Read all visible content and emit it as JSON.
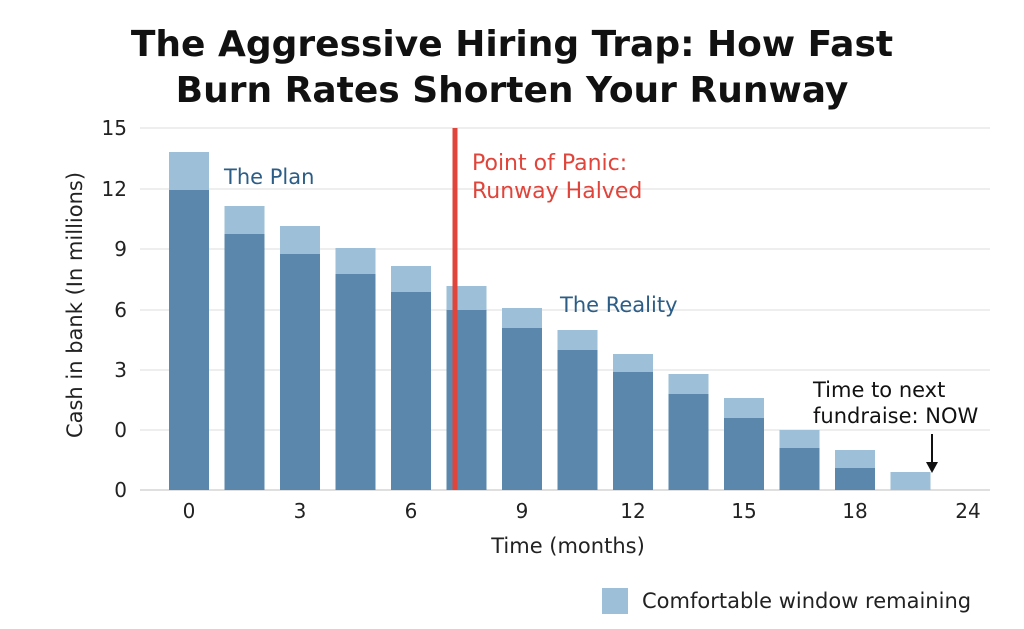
{
  "title_lines": [
    "The Aggressive Hiring Trap: How Fast",
    "Burn Rates Shorten Your Runway"
  ],
  "legend": {
    "label": "Comfortable window remaining",
    "color": "#9dbfd8"
  },
  "colors": {
    "reality": "#5b87ad",
    "window": "#9dbfd8",
    "panic": "#e0443a",
    "annotation_blue": "#2b5d86"
  },
  "chart_data": {
    "type": "bar",
    "title": "The Aggressive Hiring Trap: How Fast Burn Rates Shorten Your Runway",
    "xlabel": "Time (months)",
    "ylabel": "Cash in bank (In millions)",
    "x_ticks": [
      "0",
      "3",
      "6",
      "9",
      "12",
      "15",
      "18",
      "24"
    ],
    "y_ticks": [
      "0",
      "0",
      "3",
      "6",
      "9",
      "12",
      "15"
    ],
    "grid": true,
    "series": [
      {
        "name": "",
        "values": [
          12.0,
          9.8,
          8.8,
          7.8,
          6.9,
          6.0,
          5.1,
          4.0,
          2.9,
          1.8,
          0.6,
          -0.9,
          -1.9,
          null
        ]
      },
      {
        "name": "Comfortable window remaining",
        "values": [
          1.9,
          1.4,
          1.4,
          1.3,
          1.3,
          1.2,
          1.0,
          1.0,
          0.9,
          1.0,
          1.0,
          0.9,
          0.9,
          0.9
        ]
      }
    ],
    "annotations": [
      {
        "text": "The Plan"
      },
      {
        "text": "The Reality"
      },
      {
        "text": [
          "Point of Panic:",
          "Runway Halved"
        ]
      },
      {
        "text": [
          "Time to next",
          "fundraise: NOW"
        ]
      }
    ]
  }
}
